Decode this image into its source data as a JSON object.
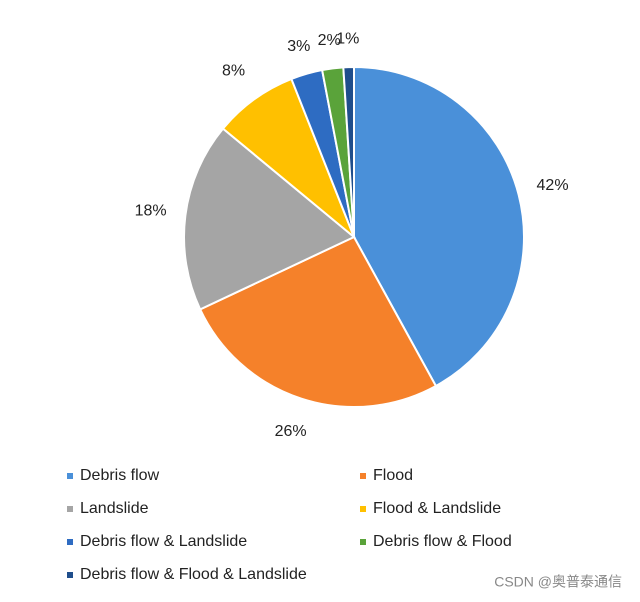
{
  "chart_data": {
    "type": "pie",
    "categories": [
      "Debris flow",
      "Flood",
      "Landslide",
      "Flood & Landslide",
      "Debris flow & Landslide",
      "Debris flow & Flood",
      "Debris flow & Flood  & Landslide"
    ],
    "values": [
      42,
      26,
      18,
      8,
      3,
      2,
      1
    ],
    "value_labels": [
      "42%",
      "26%",
      "18%",
      "8%",
      "3%",
      "2%",
      "1%"
    ],
    "colors": [
      "#4a90d9",
      "#f5812a",
      "#a5a5a5",
      "#ffc000",
      "#2e6cc2",
      "#5aa33a",
      "#1f4e8c"
    ],
    "legend": "bottom"
  },
  "watermark": "CSDN @奥普泰通信"
}
